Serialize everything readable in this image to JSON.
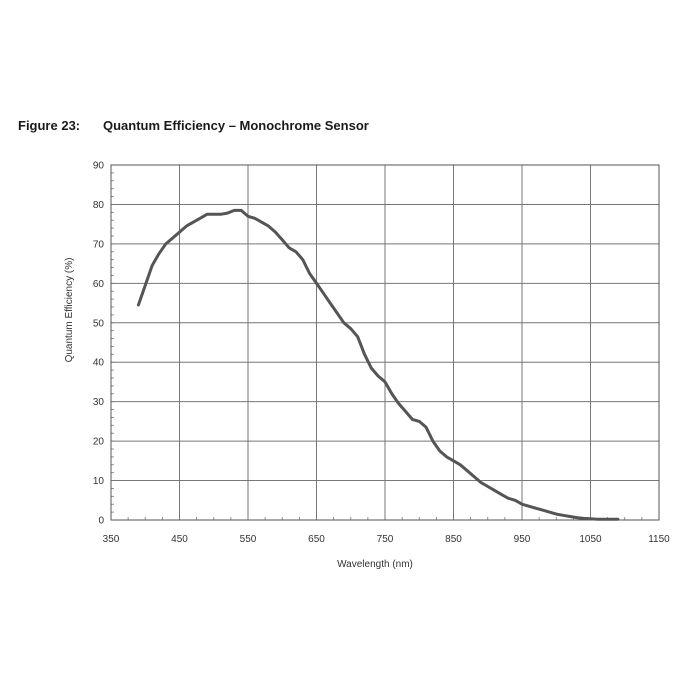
{
  "figure": {
    "number": "Figure 23:",
    "title": "Quantum Efficiency – Monochrome Sensor"
  },
  "chart_data": {
    "type": "line",
    "title": "Quantum Efficiency – Monochrome Sensor",
    "xlabel": "Wavelength (nm)",
    "ylabel": "Quantum Efficiency (%)",
    "xlim": [
      350,
      1150
    ],
    "ylim": [
      0,
      90
    ],
    "x_ticks": [
      350,
      450,
      550,
      650,
      750,
      850,
      950,
      1050,
      1150
    ],
    "y_ticks": [
      0,
      10,
      20,
      30,
      40,
      50,
      60,
      70,
      80,
      90
    ],
    "x_minor_step": 25,
    "y_minor_step": 2,
    "grid": true,
    "legend": "none",
    "line_color": "#555555",
    "series": [
      {
        "x": [
          390,
          400,
          410,
          420,
          430,
          440,
          450,
          460,
          470,
          480,
          490,
          500,
          510,
          520,
          530,
          540,
          550,
          560,
          570,
          580,
          590,
          600,
          610,
          620,
          630,
          640,
          650,
          660,
          670,
          680,
          690,
          700,
          710,
          720,
          730,
          740,
          750,
          760,
          770,
          780,
          790,
          800,
          810,
          820,
          830,
          840,
          850,
          860,
          870,
          880,
          890,
          900,
          910,
          920,
          930,
          940,
          950,
          960,
          970,
          980,
          990,
          1000,
          1010,
          1020,
          1030,
          1040,
          1050,
          1060,
          1070,
          1080,
          1090
        ],
        "values": [
          54.5,
          59.5,
          64.5,
          67.5,
          70,
          71.5,
          73,
          74.5,
          75.5,
          76.5,
          77.5,
          77.5,
          77.5,
          77.8,
          78.5,
          78.5,
          77,
          76.5,
          75.5,
          74.5,
          73,
          71,
          69,
          68,
          66,
          62.5,
          60,
          57.5,
          55,
          52.5,
          50,
          48.5,
          46.5,
          42,
          38.5,
          36.5,
          35,
          32,
          29.5,
          27.5,
          25.5,
          25,
          23.5,
          20,
          17.5,
          16,
          15,
          14,
          12.5,
          11,
          9.5,
          8.5,
          7.5,
          6.5,
          5.5,
          5,
          4,
          3.5,
          3,
          2.5,
          2,
          1.5,
          1.2,
          0.9,
          0.6,
          0.4,
          0.3,
          0.2,
          0.2,
          0.2,
          0.2
        ]
      }
    ]
  }
}
